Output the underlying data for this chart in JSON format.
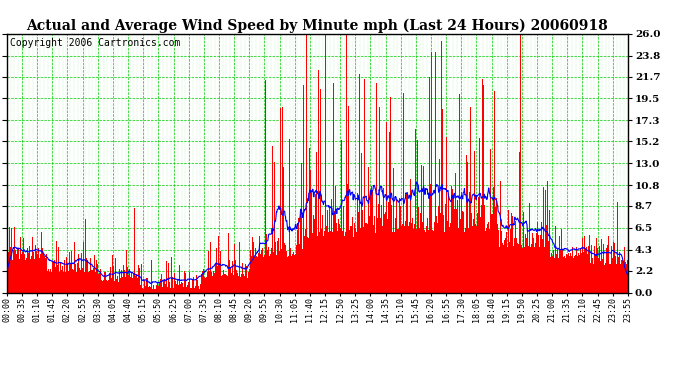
{
  "title": "Actual and Average Wind Speed by Minute mph (Last 24 Hours) 20060918",
  "copyright": "Copyright 2006 Cartronics.com",
  "y_ticks": [
    0.0,
    2.2,
    4.3,
    6.5,
    8.7,
    10.8,
    13.0,
    15.2,
    17.3,
    19.5,
    21.7,
    23.8,
    26.0
  ],
  "ylim": [
    0,
    26.0
  ],
  "x_tick_labels": [
    "00:00",
    "00:35",
    "01:10",
    "01:45",
    "02:20",
    "02:55",
    "03:30",
    "04:05",
    "04:40",
    "05:15",
    "05:50",
    "06:25",
    "07:00",
    "07:35",
    "08:10",
    "08:45",
    "09:20",
    "09:55",
    "10:30",
    "11:05",
    "11:40",
    "12:15",
    "12:50",
    "13:25",
    "14:00",
    "14:35",
    "15:10",
    "15:45",
    "16:20",
    "16:55",
    "17:30",
    "18:05",
    "18:40",
    "19:15",
    "19:50",
    "20:25",
    "21:00",
    "21:35",
    "22:10",
    "22:45",
    "23:20",
    "23:55"
  ],
  "bar_color": "#FF0000",
  "line_color": "#0000FF",
  "grid_color": "#00CC00",
  "background_color": "#FFFFFF",
  "title_fontsize": 10,
  "copyright_fontsize": 7,
  "tick_fontsize": 6,
  "ytick_fontsize": 7.5
}
